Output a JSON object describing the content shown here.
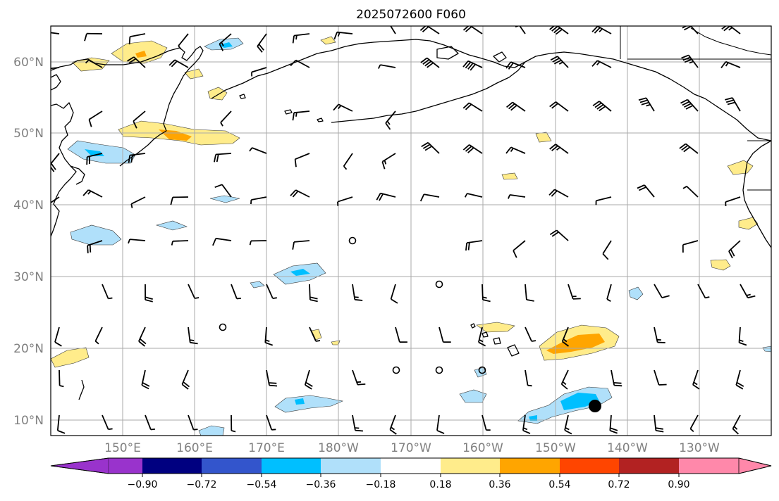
{
  "title": "2025072600 F060",
  "lat_labels": [
    "60°N",
    "50°N",
    "40°N",
    "30°N",
    "20°N",
    "10°N"
  ],
  "lon_labels": [
    "150°E",
    "160°E",
    "170°E",
    "180°W",
    "170°W",
    "160°W",
    "150°W",
    "140°W",
    "130°W"
  ],
  "colorbar": {
    "ticks": [
      "−0.90",
      "−0.72",
      "−0.54",
      "−0.36",
      "−0.18",
      "0.18",
      "0.36",
      "0.54",
      "0.72",
      "0.90"
    ],
    "colors": [
      "#9933cc",
      "#000080",
      "#3355cc",
      "#00bfff",
      "#b0e0fa",
      "#ffffff",
      "#ffec8b",
      "#ffa500",
      "#ff4500",
      "#b22222",
      "#ff88aa"
    ]
  },
  "marker": {
    "name": "point-marker",
    "color": "#000000"
  },
  "colors": {
    "grid": "#aaaaaa",
    "label": "#808080"
  }
}
